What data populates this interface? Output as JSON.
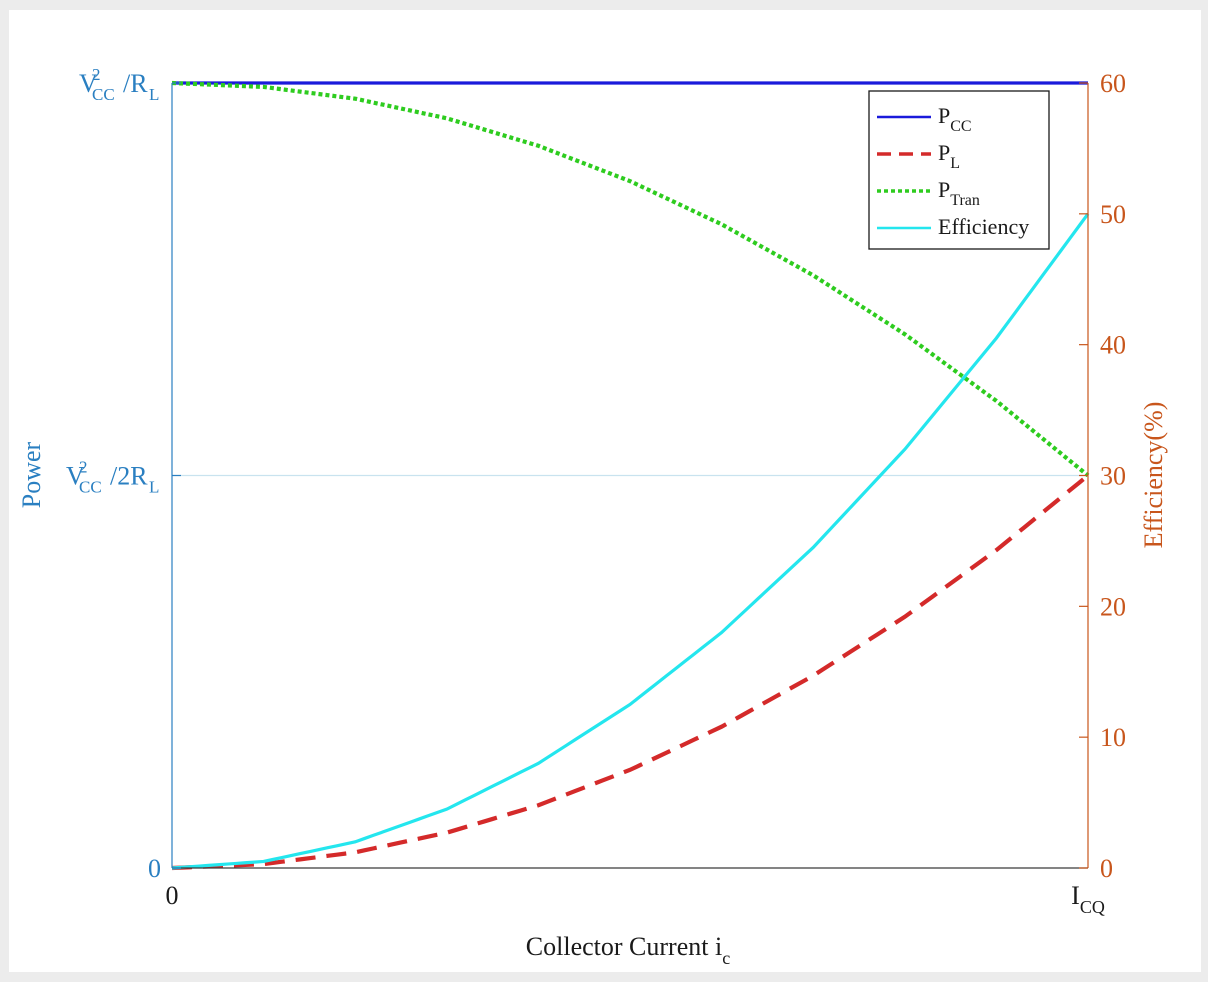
{
  "chart_data": {
    "type": "line",
    "xlabel": "Collector Current i",
    "xlabel_sub": "c",
    "x_ticks": [
      {
        "main": "0",
        "sub": "",
        "x": 0
      },
      {
        "main": "I",
        "sub": "CQ",
        "x": 1
      }
    ],
    "left_axis": {
      "label": "Power",
      "range": [
        0,
        1
      ],
      "ticks": [
        {
          "value": 0,
          "parts": [
            {
              "t": "0"
            }
          ]
        },
        {
          "value": 0.5,
          "parts": [
            {
              "t": "V"
            },
            {
              "t": "2",
              "stack": "CC"
            },
            {
              "t": "/2R"
            },
            {
              "t": "L",
              "sub": true
            }
          ]
        },
        {
          "value": 1,
          "parts": [
            {
              "t": "V"
            },
            {
              "t": "2",
              "stack": "CC"
            },
            {
              "t": "/R"
            },
            {
              "t": "L",
              "sub": true
            }
          ]
        }
      ]
    },
    "right_axis": {
      "label": "Efficiency(%)",
      "range": [
        0,
        60
      ],
      "ticks": [
        0,
        10,
        20,
        30,
        40,
        50,
        60
      ]
    },
    "reference_line": {
      "axis": "left",
      "value": 0.5
    },
    "x": [
      0,
      0.1,
      0.2,
      0.3,
      0.4,
      0.5,
      0.6,
      0.7,
      0.8,
      0.9,
      1.0
    ],
    "series": [
      {
        "name": "P",
        "name_sub": "CC",
        "axis": "left",
        "style": "solid",
        "color": "#1a1adb",
        "values": [
          1,
          1,
          1,
          1,
          1,
          1,
          1,
          1,
          1,
          1,
          1
        ]
      },
      {
        "name": "P",
        "name_sub": "L",
        "axis": "left",
        "style": "dashed",
        "color": "#d42a2a",
        "values": [
          0,
          0.005,
          0.02,
          0.045,
          0.08,
          0.125,
          0.18,
          0.245,
          0.32,
          0.405,
          0.5
        ]
      },
      {
        "name": "P",
        "name_sub": "Tran",
        "axis": "left",
        "style": "dotted",
        "color": "#2ecc1f",
        "values": [
          1,
          0.995,
          0.98,
          0.955,
          0.92,
          0.875,
          0.82,
          0.755,
          0.68,
          0.595,
          0.5
        ]
      },
      {
        "name": "Efficiency",
        "name_sub": "",
        "axis": "right",
        "style": "solid",
        "color": "#24e6ee",
        "values": [
          0,
          0.5,
          2,
          4.5,
          8,
          12.5,
          18,
          24.5,
          32,
          40.5,
          50
        ]
      }
    ],
    "legend": "top-right",
    "colors": {
      "left_axis": "#2a7fc1",
      "right_axis": "#c8561c",
      "text": "#1a1a1a",
      "axis_line": "#3a3a3a",
      "reference_line": "#c9e3ef"
    }
  }
}
